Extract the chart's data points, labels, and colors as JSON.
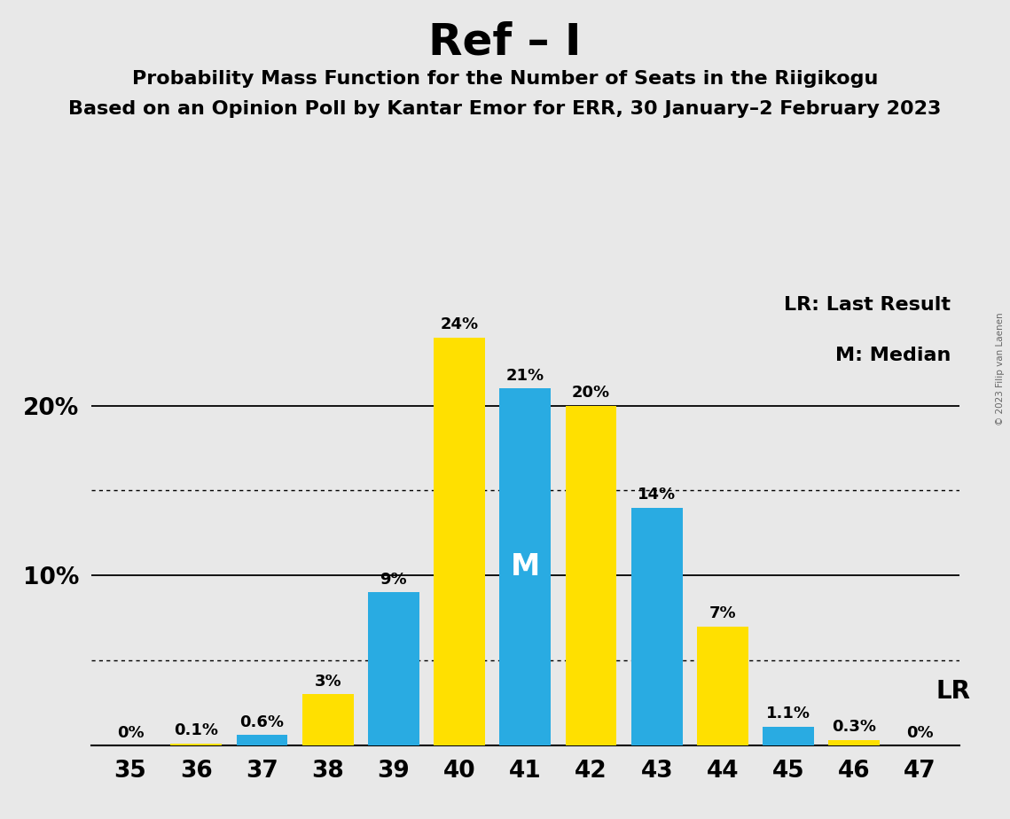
{
  "title": "Ref – I",
  "subtitle1": "Probability Mass Function for the Number of Seats in the Riigikogu",
  "subtitle2": "Based on an Opinion Poll by Kantar Emor for ERR, 30 January–2 February 2023",
  "copyright": "© 2023 Filip van Laenen",
  "seats": [
    35,
    36,
    37,
    38,
    39,
    40,
    41,
    42,
    43,
    44,
    45,
    46,
    47
  ],
  "bar_colors": [
    "#FFE000",
    "#FFE000",
    "#29ABE2",
    "#FFE000",
    "#29ABE2",
    "#FFE000",
    "#29ABE2",
    "#FFE000",
    "#29ABE2",
    "#FFE000",
    "#29ABE2",
    "#FFE000",
    "#FFE000"
  ],
  "bar_heights": [
    0,
    0.1,
    0.6,
    3,
    9,
    24,
    21,
    20,
    14,
    7,
    1.1,
    0.3,
    0
  ],
  "bar_labels": [
    "0%",
    "0.1%",
    "0.6%",
    "3%",
    "9%",
    "24%",
    "21%",
    "20%",
    "14%",
    "7%",
    "1.1%",
    "0.3%",
    "0%"
  ],
  "blue_color": "#29ABE2",
  "yellow_color": "#FFE000",
  "background_color": "#E8E8E8",
  "median_idx": 6,
  "lr_idx": 9,
  "legend_lr": "LR: Last Result",
  "legend_m": "M: Median",
  "lr_label": "LR",
  "m_label": "M",
  "solid_lines": [
    10,
    20
  ],
  "dotted_lines": [
    5,
    15
  ],
  "ylim": [
    0,
    27
  ],
  "bar_width": 0.78
}
